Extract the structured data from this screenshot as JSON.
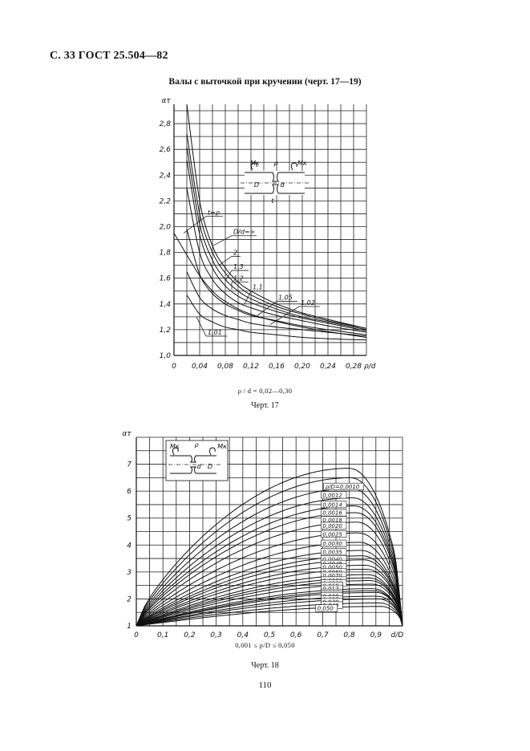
{
  "header": "С. 33 ГОСТ 25.504—82",
  "section_title": "Валы с выточкой при кручении (черт. 17—19)",
  "chart17": {
    "condition": "ρ / d = 0,02—0,30",
    "caption": "Черт. 17"
  },
  "chart18": {
    "condition": "0,001 ≤ ρ/D ≤ 0,050",
    "caption": "Черт. 18"
  },
  "page_number": "110",
  "chart_data": [
    {
      "type": "line",
      "ylabel": "ατ",
      "xlabel": "ρ/d",
      "xlim": [
        0,
        0.3
      ],
      "ylim": [
        1.0,
        2.95
      ],
      "x_ticks": [
        "0",
        "0,04",
        "0,08",
        "0,12",
        "0,16",
        "0,20",
        "0,24",
        "0,28"
      ],
      "y_ticks": [
        "1,0",
        "1,2",
        "1,4",
        "1,6",
        "1,8",
        "2,0",
        "2,2",
        "2,4",
        "2,6",
        "2,8"
      ],
      "grid": true,
      "annotations": [
        "t=ρ",
        "D/d=∞",
        "2",
        "1,3",
        "1,2",
        "1,1",
        "1,05",
        "1,02",
        "1,01",
        "Mк",
        "ρ",
        "Mк",
        "D",
        "d",
        "t"
      ],
      "series": [
        {
          "name": "D/d=∞",
          "x": [
            0.02,
            0.04,
            0.06,
            0.08,
            0.1,
            0.12,
            0.16,
            0.2,
            0.24,
            0.3
          ],
          "y": [
            2.95,
            2.2,
            1.85,
            1.68,
            1.57,
            1.5,
            1.4,
            1.33,
            1.28,
            1.21
          ]
        },
        {
          "name": "2",
          "x": [
            0.02,
            0.04,
            0.06,
            0.08,
            0.1,
            0.12,
            0.16,
            0.2,
            0.24,
            0.3
          ],
          "y": [
            2.72,
            2.1,
            1.8,
            1.64,
            1.54,
            1.47,
            1.38,
            1.32,
            1.27,
            1.21
          ]
        },
        {
          "name": "1,3",
          "x": [
            0.02,
            0.04,
            0.06,
            0.08,
            0.1,
            0.12,
            0.16,
            0.2,
            0.24,
            0.3
          ],
          "y": [
            2.62,
            2.02,
            1.74,
            1.59,
            1.5,
            1.44,
            1.36,
            1.3,
            1.26,
            1.2
          ]
        },
        {
          "name": "1,2",
          "x": [
            0.02,
            0.04,
            0.06,
            0.08,
            0.1,
            0.12,
            0.16,
            0.2,
            0.24,
            0.3
          ],
          "y": [
            2.52,
            1.94,
            1.68,
            1.54,
            1.46,
            1.41,
            1.34,
            1.29,
            1.25,
            1.19
          ]
        },
        {
          "name": "1,1",
          "x": [
            0.02,
            0.04,
            0.06,
            0.08,
            0.1,
            0.12,
            0.16,
            0.2,
            0.24,
            0.3
          ],
          "y": [
            2.3,
            1.8,
            1.59,
            1.48,
            1.41,
            1.37,
            1.31,
            1.27,
            1.23,
            1.18
          ]
        },
        {
          "name": "1,05",
          "x": [
            0.02,
            0.04,
            0.06,
            0.08,
            0.1,
            0.12,
            0.16,
            0.2,
            0.24,
            0.3
          ],
          "y": [
            1.98,
            1.63,
            1.48,
            1.4,
            1.35,
            1.31,
            1.27,
            1.23,
            1.2,
            1.16
          ]
        },
        {
          "name": "1,02",
          "x": [
            0.02,
            0.04,
            0.06,
            0.08,
            0.1,
            0.12,
            0.16,
            0.2,
            0.24,
            0.3
          ],
          "y": [
            1.65,
            1.45,
            1.36,
            1.31,
            1.28,
            1.25,
            1.22,
            1.2,
            1.18,
            1.15
          ]
        },
        {
          "name": "1,01",
          "x": [
            0.02,
            0.04,
            0.06,
            0.08,
            0.1,
            0.12,
            0.16,
            0.2,
            0.24,
            0.3
          ],
          "y": [
            1.47,
            1.32,
            1.26,
            1.22,
            1.2,
            1.18,
            1.16,
            1.14,
            1.13,
            1.12
          ]
        },
        {
          "name": "t=ρ",
          "x": [
            0.0,
            0.02,
            0.04,
            0.06,
            0.08,
            0.12,
            0.2,
            0.3
          ],
          "y": [
            1.95,
            1.78,
            1.62,
            1.5,
            1.42,
            1.32,
            1.22,
            1.14
          ]
        }
      ]
    },
    {
      "type": "line",
      "ylabel": "ατ",
      "xlabel": "d/D",
      "xlim": [
        0,
        1.0
      ],
      "ylim": [
        1,
        8
      ],
      "x_ticks": [
        "0",
        "0,1",
        "0,2",
        "0,3",
        "0,4",
        "0,5",
        "0,6",
        "0,7",
        "0,8",
        "0,9",
        "d/D"
      ],
      "y_ticks": [
        "1",
        "2",
        "3",
        "4",
        "5",
        "6",
        "7"
      ],
      "grid": true,
      "annotations": [
        "Mк",
        "ρ",
        "Mк",
        "d",
        "D"
      ],
      "series": [
        {
          "name": "ρ/D=0,0010",
          "peak": 6.85
        },
        {
          "name": "0,0012",
          "peak": 6.5
        },
        {
          "name": "0,0014",
          "peak": 6.1
        },
        {
          "name": "0,0016",
          "peak": 5.75
        },
        {
          "name": "0,0018",
          "peak": 5.45
        },
        {
          "name": "0,0020",
          "peak": 5.2
        },
        {
          "name": "0,0025",
          "peak": 4.85
        },
        {
          "name": "0,0030",
          "peak": 4.45
        },
        {
          "name": "0,0035",
          "peak": 4.1
        },
        {
          "name": "0,0040",
          "peak": 3.8
        },
        {
          "name": "0,0045",
          "peak": 3.6
        },
        {
          "name": "0,0050",
          "peak": 3.45
        },
        {
          "name": "0,0060",
          "peak": 3.25
        },
        {
          "name": "0,0070",
          "peak": 3.1
        },
        {
          "name": "0,0080",
          "peak": 2.9
        },
        {
          "name": "0,0090",
          "peak": 2.78
        },
        {
          "name": "0,010",
          "peak": 2.68
        },
        {
          "name": "0,012",
          "peak": 2.55
        },
        {
          "name": "0,016",
          "peak": 2.38
        },
        {
          "name": "0,018",
          "peak": 2.3
        },
        {
          "name": "0,020",
          "peak": 2.24
        },
        {
          "name": "0,025",
          "peak": 2.1
        },
        {
          "name": "0,030",
          "peak": 2.0
        },
        {
          "name": "0,040",
          "peak": 1.85
        },
        {
          "name": "0,050",
          "peak": 1.72
        }
      ]
    }
  ]
}
